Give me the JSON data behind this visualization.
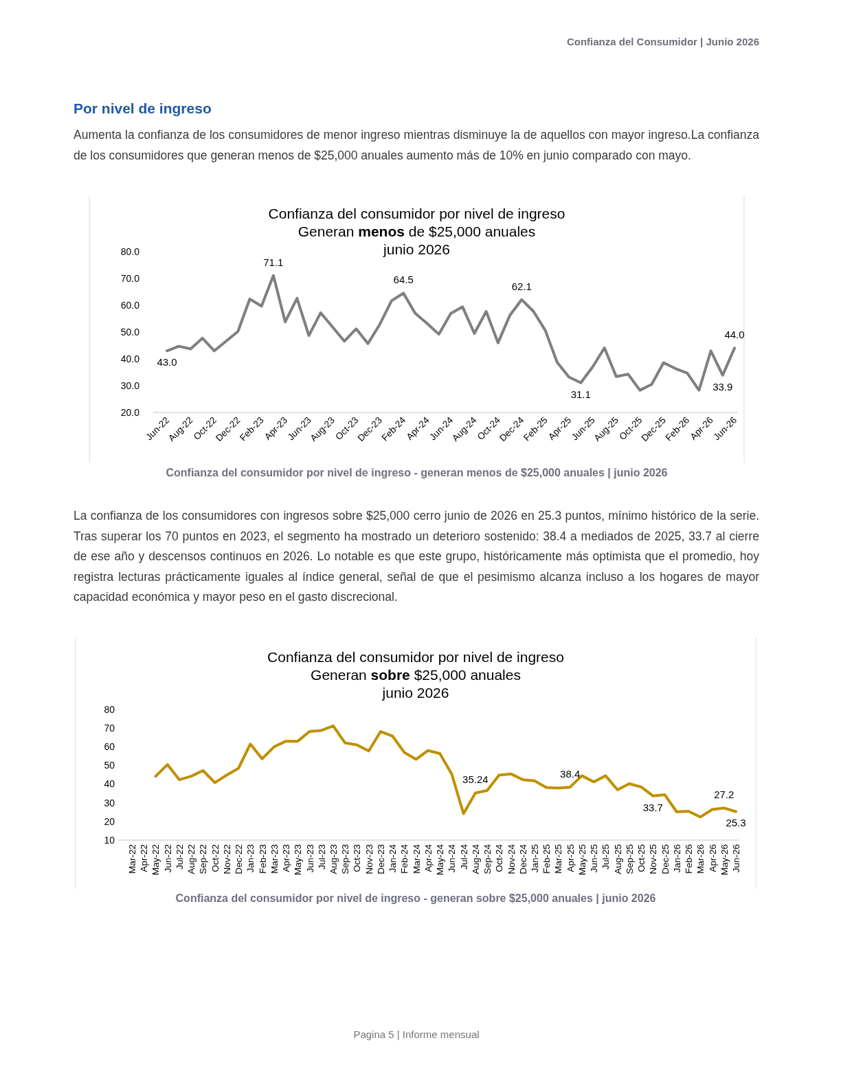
{
  "chart_data": [
    {
      "type": "line",
      "title": "Confianza del consumidor por nivel de ingreso",
      "subtitle": "Generan menos de $25,000 anuales\njunio 2026",
      "annotations": [
        "Confianza del Consumidor | Junio 2026",
        "Por nivel de ingreso",
        "Aumenta la confianza de los consumidores de menor ingreso mientras disminuye la de aquellos con mayor ingreso.La confianza de los consumidores que generan menos de $25,000 anuales aumento más de 10% en junio comparado con mayo.",
        "Confianza del consumidor por nivel de ingreso - generan menos de $25,000 anuales | junio 2026"
      ],
      "categories": [
        "Jun-22",
        null,
        "Aug-22",
        null,
        "Oct-22",
        null,
        "Dec-22",
        null,
        "Feb-23",
        null,
        "Apr-23",
        null,
        "Jun-23",
        null,
        "Aug-23",
        null,
        "Oct-23",
        null,
        "Dec-23",
        null,
        "Feb-24",
        null,
        "Apr-24",
        null,
        "Jun-24",
        null,
        "Aug-24",
        null,
        "Oct-24",
        null,
        "Dec-24",
        null,
        "Feb-25",
        null,
        "Apr-25",
        null,
        "Jun-25",
        null,
        "Aug-25",
        null,
        "Oct-25",
        null,
        "Dec-25",
        null,
        "Feb-26",
        null,
        "Apr-26",
        null,
        "Jun-26"
      ],
      "values": [
        43.0,
        44.7,
        43.7,
        47.7,
        43.0,
        46.6,
        50.2,
        62.3,
        59.7,
        71.1,
        53.8,
        62.6,
        48.7,
        57.2,
        51.9,
        46.6,
        51.2,
        45.7,
        52.9,
        61.7,
        64.5,
        57.0,
        53.2,
        49.2,
        56.9,
        59.4,
        49.5,
        57.7,
        46.0,
        56.2,
        62.1,
        57.7,
        50.6,
        38.7,
        33.2,
        31.1,
        37.0,
        44.1,
        33.4,
        34.3,
        28.3,
        30.5,
        38.6,
        36.4,
        34.7,
        28.3,
        43.0,
        33.9,
        44.0
      ],
      "value_labels": [
        "43.0",
        null,
        null,
        null,
        null,
        null,
        null,
        null,
        null,
        "71.1",
        null,
        null,
        null,
        null,
        null,
        null,
        null,
        null,
        null,
        null,
        "64.5",
        null,
        null,
        null,
        null,
        null,
        null,
        null,
        null,
        null,
        "62.1",
        null,
        null,
        null,
        null,
        "31.1",
        null,
        null,
        null,
        null,
        null,
        null,
        null,
        null,
        null,
        null,
        null,
        "33.9",
        "44.0"
      ],
      "color": "#7f7f7f",
      "ylim": [
        20,
        80
      ],
      "yticks": [
        {
          "value": 20,
          "label": "20.0"
        },
        {
          "value": 30,
          "label": "30.0"
        },
        {
          "value": 40,
          "label": "40.0"
        },
        {
          "value": 50,
          "label": "50.0"
        },
        {
          "value": 60,
          "label": "60.0"
        },
        {
          "value": 70,
          "label": "70.0"
        },
        {
          "value": 80,
          "label": "80.0"
        }
      ]
    },
    {
      "type": "line",
      "title": "Confianza del consumidor por nivel de ingreso",
      "subtitle": "Generan sobre $25,000 anuales\njunio 2026",
      "annotations": [
        "La confianza de los consumidores con ingresos sobre $25,000 cerro junio de 2026 en 25.3 puntos, mínimo histórico de la serie. Tras superar los 70 puntos en 2023, el segmento ha mostrado un deterioro sostenido: 38.4 a mediados de 2025, 33.7 al cierre de ese año y descensos continuos en 2026. Lo notable es que este grupo, históricamente más optimista que el promedio, hoy registra lecturas prácticamente iguales al índice general, señal de que el pesimismo alcanza incluso a los hogares de mayor capacidad económica y mayor peso en el gasto discrecional.",
        "Confianza del consumidor por nivel de ingreso - generan sobre $25,000 anuales | junio 2026",
        "Pagina 5 | Informe mensual"
      ],
      "categories": [
        "Mar-22",
        "Apr-22",
        "May-22",
        "Jun-22",
        "Jul-22",
        "Aug-22",
        "Sep-22",
        "Oct-22",
        "Nov-22",
        "Dec-22",
        "Jan-23",
        "Feb-23",
        "Mar-23",
        "Apr-23",
        "May-23",
        "Jun-23",
        "Jul-23",
        "Aug-23",
        "Sep-23",
        "Oct-23",
        "Nov-23",
        "Dec-23",
        "Jan-24",
        "Feb-24",
        "Mar-24",
        "Apr-24",
        "May-24",
        "Jun-24",
        "Jul-24",
        "Aug-24",
        "Sep-24",
        "Oct-24",
        "Nov-24",
        "Dec-24",
        "Jan-25",
        "Feb-25",
        "Mar-25",
        "Apr-25",
        "May-25",
        "Jun-25",
        "Jul-25",
        "Aug-25",
        "Sep-25",
        "Oct-25",
        "Nov-25",
        "Dec-25",
        "Jan-26",
        "Feb-26",
        "Mar-26",
        "Apr-26",
        "May-26",
        "Jun-26"
      ],
      "values": [
        null,
        null,
        44.2,
        50.5,
        42.4,
        44.2,
        47.3,
        40.8,
        44.8,
        48.5,
        61.5,
        53.6,
        60.0,
        63.0,
        63.0,
        68.2,
        68.8,
        71.2,
        62.1,
        61.0,
        57.8,
        68.2,
        65.8,
        57.0,
        53.3,
        58.0,
        56.4,
        45.5,
        24.2,
        35.24,
        36.6,
        44.8,
        45.5,
        42.4,
        41.8,
        38.2,
        37.9,
        38.4,
        44.5,
        41.2,
        44.5,
        37.0,
        40.2,
        38.5,
        33.7,
        34.3,
        25.2,
        25.5,
        22.4,
        26.4,
        27.2,
        25.3
      ],
      "value_labels": [
        null,
        null,
        null,
        null,
        null,
        null,
        null,
        null,
        null,
        null,
        null,
        null,
        null,
        null,
        null,
        null,
        null,
        null,
        null,
        null,
        null,
        null,
        null,
        null,
        null,
        null,
        null,
        null,
        null,
        "35.24",
        null,
        null,
        null,
        null,
        null,
        null,
        null,
        "38.4",
        null,
        null,
        null,
        null,
        null,
        null,
        "33.7",
        null,
        null,
        null,
        null,
        null,
        "27.2",
        "25.3"
      ],
      "color": "#bf9000",
      "ylim": [
        10,
        80
      ],
      "yticks": [
        10,
        20,
        30,
        40,
        50,
        60,
        70,
        80
      ]
    }
  ]
}
